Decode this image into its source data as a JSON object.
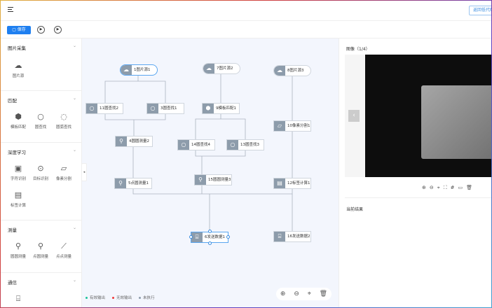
{
  "header": {
    "back_label": "返回低代码"
  },
  "toolbar": {
    "save_label": "保存"
  },
  "sidebar": {
    "sections": [
      {
        "title": "图片采集",
        "items": [
          {
            "label": "图片源",
            "icon": "cloud-image-icon"
          }
        ]
      },
      {
        "title": "匹配",
        "items": [
          {
            "label": "模板匹配",
            "icon": "cube-icon"
          },
          {
            "label": "圆查找",
            "icon": "circle-search-icon"
          },
          {
            "label": "圆弧查找",
            "icon": "arc-search-icon"
          }
        ]
      },
      {
        "title": "深度学习",
        "items": [
          {
            "label": "字符识别",
            "icon": "ocr-icon"
          },
          {
            "label": "目标识别",
            "icon": "target-icon"
          },
          {
            "label": "像素分割",
            "icon": "segment-icon"
          },
          {
            "label": "标签计算",
            "icon": "label-calc-icon"
          }
        ]
      },
      {
        "title": "测量",
        "items": [
          {
            "label": "圆圆测量",
            "icon": "circle-circle-icon"
          },
          {
            "label": "点圆测量",
            "icon": "point-circle-icon"
          },
          {
            "label": "点点测量",
            "icon": "point-point-icon"
          }
        ]
      },
      {
        "title": "通信",
        "items": [
          {
            "label": "",
            "icon": "send-data-icon"
          }
        ]
      }
    ]
  },
  "canvas": {
    "nodes": [
      {
        "label": "1图片源1"
      },
      {
        "label": "7图片源2"
      },
      {
        "label": "8图片源3"
      },
      {
        "label": "11圆查找2"
      },
      {
        "label": "3圆查找1"
      },
      {
        "label": "9模板匹配1"
      },
      {
        "label": "4圆圆测量2"
      },
      {
        "label": "14圆查找4"
      },
      {
        "label": "13圆查找3"
      },
      {
        "label": "10像素分割1"
      },
      {
        "label": "5点圆测量1"
      },
      {
        "label": "15圆圆测量3"
      },
      {
        "label": "12标签计算1"
      },
      {
        "label": "6发送数据1"
      },
      {
        "label": "16发送数据2"
      }
    ],
    "legend": [
      {
        "label": "有效输出",
        "color": "#19c39a"
      },
      {
        "label": "无效输出",
        "color": "#f03a3a"
      },
      {
        "label": "未执行",
        "color": "#8d9cab"
      }
    ]
  },
  "right": {
    "image_title": "图像（1/4）",
    "result_title": "当前结果"
  }
}
